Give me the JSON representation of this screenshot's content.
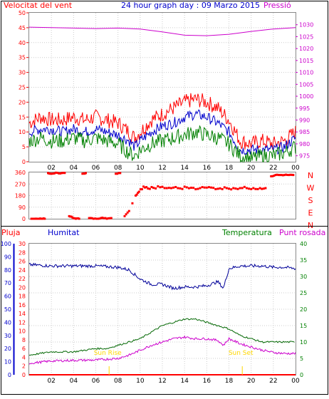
{
  "header": {
    "title": "24 hour graph day : 09 Marzo 2015",
    "left_label": "Velocitat del vent",
    "right_label": "Pressió"
  },
  "colors": {
    "wind_gust": "#ff0000",
    "wind_avg": "#0000cc",
    "wind_min": "#008000",
    "pressure": "#cc00cc",
    "direction": "#ff0000",
    "rain": "#ff0000",
    "humidity": "#000099",
    "temperature": "#006600",
    "dewpoint": "#cc00cc",
    "sun": "#ffd700",
    "grid": "#cccccc",
    "axis_red": "#ff0000",
    "axis_magenta": "#cc00cc",
    "axis_blue": "#0000cc",
    "axis_green": "#008000"
  },
  "chart_data": [
    {
      "type": "line",
      "name": "wind-pressure",
      "x_ticks": [
        "02",
        "04",
        "06",
        "08",
        "10",
        "12",
        "14",
        "16",
        "18",
        "20",
        "22",
        "00"
      ],
      "y_left": {
        "min": 0,
        "max": 50,
        "ticks": [
          0,
          5,
          10,
          15,
          20,
          25,
          30,
          35,
          40,
          45,
          50
        ]
      },
      "y_right": {
        "min": 972.5,
        "max": 1035,
        "ticks": [
          975,
          980,
          985,
          990,
          995,
          1000,
          1005,
          1010,
          1015,
          1020,
          1025,
          1030
        ]
      },
      "series": [
        {
          "key": "gust",
          "axis": "left",
          "x": [
            0,
            1,
            2,
            3,
            4,
            5,
            6,
            7,
            8,
            9,
            9.5,
            10,
            11,
            12,
            13,
            14,
            15,
            16,
            17,
            18,
            19,
            20,
            21,
            22,
            23,
            24
          ],
          "values": [
            13,
            15,
            14,
            14,
            15,
            14,
            15,
            14,
            13,
            10,
            8,
            10,
            14,
            16,
            18,
            20,
            21,
            20,
            18,
            14,
            7,
            6,
            7,
            6,
            7,
            10
          ]
        },
        {
          "key": "average",
          "axis": "left",
          "x": [
            0,
            1,
            2,
            3,
            4,
            5,
            6,
            7,
            8,
            9,
            9.5,
            10,
            11,
            12,
            13,
            14,
            15,
            16,
            17,
            18,
            19,
            20,
            21,
            22,
            23,
            24
          ],
          "values": [
            10,
            11,
            11,
            10,
            11,
            10,
            11,
            10,
            9,
            7,
            5,
            7,
            10,
            12,
            13,
            15,
            16,
            15,
            13,
            10,
            4,
            4,
            4,
            4,
            5,
            8
          ]
        },
        {
          "key": "minimum",
          "axis": "left",
          "x": [
            0,
            1,
            2,
            3,
            4,
            5,
            6,
            7,
            8,
            9,
            9.5,
            10,
            11,
            12,
            13,
            14,
            15,
            16,
            17,
            18,
            19,
            20,
            21,
            22,
            23,
            24
          ],
          "values": [
            7,
            8,
            7,
            7,
            8,
            7,
            8,
            7,
            6,
            3,
            2,
            4,
            6,
            7,
            8,
            9,
            10,
            9,
            8,
            6,
            2,
            1,
            2,
            2,
            3,
            5
          ]
        },
        {
          "key": "pressure",
          "axis": "right",
          "x": [
            0,
            2,
            4,
            6,
            8,
            10,
            12,
            14,
            16,
            18,
            20,
            22,
            24
          ],
          "values": [
            1029,
            1028.8,
            1028.6,
            1028.4,
            1028.6,
            1028.2,
            1027,
            1025.6,
            1025.4,
            1026,
            1027.2,
            1028.2,
            1028.8
          ]
        }
      ]
    },
    {
      "type": "scatter",
      "name": "wind-direction",
      "x_ticks": [
        "02",
        "04",
        "06",
        "08",
        "10",
        "12",
        "14",
        "16",
        "18",
        "20",
        "22",
        "00"
      ],
      "y": {
        "min": 0,
        "max": 360,
        "ticks": [
          0,
          90,
          180,
          270,
          360
        ]
      },
      "compass_labels": [
        "N",
        "W",
        "S",
        "E",
        "N"
      ],
      "points": [
        [
          0.2,
          0
        ],
        [
          0.5,
          0
        ],
        [
          0.8,
          0
        ],
        [
          1.1,
          0
        ],
        [
          1.4,
          0
        ],
        [
          1.7,
          355
        ],
        [
          2.0,
          350
        ],
        [
          2.4,
          358
        ],
        [
          2.8,
          352
        ],
        [
          3.2,
          356
        ],
        [
          3.6,
          20
        ],
        [
          3.9,
          10
        ],
        [
          4.2,
          0
        ],
        [
          4.5,
          0
        ],
        [
          4.8,
          350
        ],
        [
          5.1,
          355
        ],
        [
          5.4,
          5
        ],
        [
          5.8,
          0
        ],
        [
          6.2,
          0
        ],
        [
          6.6,
          8
        ],
        [
          7.0,
          0
        ],
        [
          7.4,
          5
        ],
        [
          7.8,
          350
        ],
        [
          8.2,
          355
        ],
        [
          8.6,
          20
        ],
        [
          9.0,
          60
        ],
        [
          9.3,
          120
        ],
        [
          9.6,
          180
        ],
        [
          9.9,
          210
        ],
        [
          10.3,
          250
        ],
        [
          10.7,
          235
        ],
        [
          11.2,
          240
        ],
        [
          11.8,
          245
        ],
        [
          12.4,
          238
        ],
        [
          13.0,
          242
        ],
        [
          13.6,
          236
        ],
        [
          14.2,
          244
        ],
        [
          14.8,
          240
        ],
        [
          15.4,
          238
        ],
        [
          16.0,
          242
        ],
        [
          16.6,
          240
        ],
        [
          17.2,
          236
        ],
        [
          17.8,
          238
        ],
        [
          18.4,
          238
        ],
        [
          19.0,
          238
        ],
        [
          19.6,
          238
        ],
        [
          20.2,
          238
        ],
        [
          20.8,
          238
        ],
        [
          21.3,
          238
        ],
        [
          21.8,
          330
        ],
        [
          22.2,
          340
        ],
        [
          22.6,
          340
        ],
        [
          23.0,
          340
        ],
        [
          23.4,
          340
        ],
        [
          23.8,
          340
        ]
      ]
    },
    {
      "type": "line",
      "name": "humidity-temperature",
      "x_ticks": [
        "02",
        "04",
        "06",
        "08",
        "10",
        "12",
        "14",
        "16",
        "18",
        "20",
        "22",
        "00"
      ],
      "labels": {
        "rain": "Pluja",
        "humidity": "Humitat",
        "temperature": "Temperatura",
        "dewpoint": "Punt rosada",
        "sunrise": "Sun Rise",
        "sunset": "Sun Set"
      },
      "y_humidity": {
        "min": 0,
        "max": 100,
        "ticks": [
          0,
          10,
          20,
          30,
          40,
          50,
          60,
          70,
          80,
          90,
          100
        ]
      },
      "y_rain": {
        "min": 0,
        "max": 30,
        "ticks": [
          0,
          2,
          4,
          6,
          8,
          10,
          12,
          14,
          16,
          18,
          20,
          22,
          24,
          26,
          28,
          30
        ]
      },
      "y_temp": {
        "min": 0,
        "max": 40,
        "ticks": [
          0,
          5,
          10,
          15,
          20,
          25,
          30,
          35,
          40
        ]
      },
      "sunrise_hour": 7.2,
      "sunset_hour": 19.2,
      "series": [
        {
          "key": "humidity",
          "axis": "humidity",
          "x": [
            0,
            2,
            4,
            6,
            8,
            9,
            10,
            11,
            12,
            13,
            14,
            15,
            16,
            17,
            17.5,
            18,
            19,
            20,
            21,
            22,
            23,
            24
          ],
          "values": [
            84,
            83,
            83,
            83,
            82,
            80,
            73,
            69,
            69,
            66,
            67,
            67,
            68,
            71,
            66,
            81,
            83,
            83,
            83,
            82,
            82,
            81
          ]
        },
        {
          "key": "temperature",
          "axis": "temp",
          "x": [
            0,
            2,
            4,
            6,
            7,
            8,
            9,
            10,
            11,
            12,
            13,
            14,
            15,
            16,
            17,
            18,
            19,
            20,
            21,
            22,
            23,
            24
          ],
          "values": [
            6,
            7,
            7,
            8,
            8,
            9,
            10,
            11,
            13,
            15,
            16,
            17,
            17,
            16,
            15,
            14,
            12,
            11,
            10,
            10,
            10,
            10
          ]
        },
        {
          "key": "dewpoint",
          "axis": "temp",
          "x": [
            0,
            2,
            4,
            6,
            8,
            9,
            10,
            11,
            12,
            13,
            14,
            15,
            16,
            17,
            17.5,
            18,
            19,
            20,
            21,
            22,
            23,
            24
          ],
          "values": [
            3.5,
            4.2,
            4.4,
            4.5,
            5,
            6,
            7.5,
            9,
            10,
            11,
            11.5,
            11,
            11,
            10.5,
            9,
            11,
            9.5,
            8.5,
            7.5,
            6.8,
            6.5,
            6.5
          ]
        },
        {
          "key": "rain",
          "axis": "rain",
          "x": [
            0,
            24
          ],
          "values": [
            0,
            0
          ]
        }
      ]
    }
  ]
}
